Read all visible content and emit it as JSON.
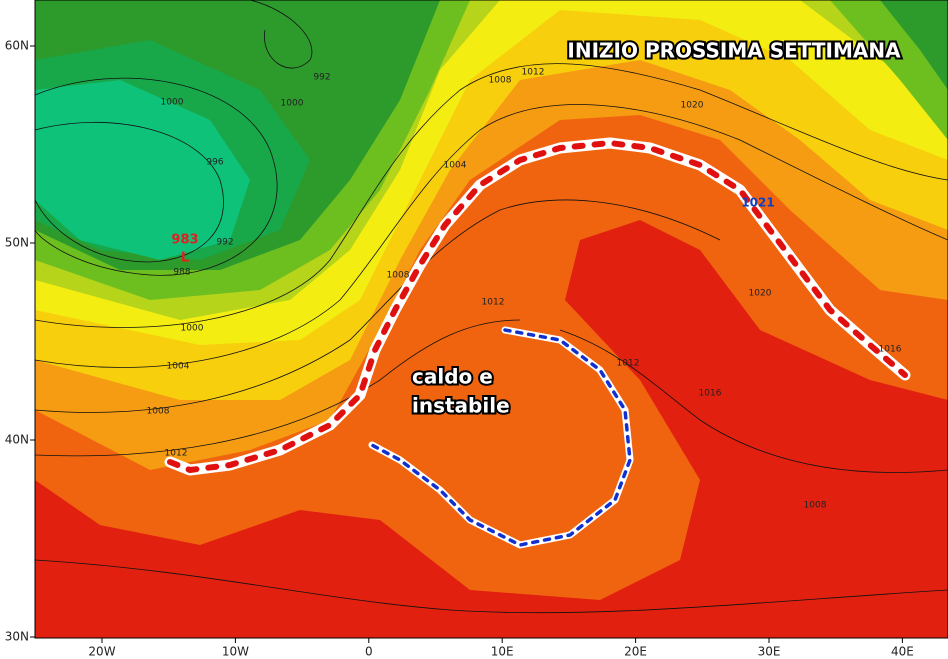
{
  "title": "INIZIO PROSSIMA SETTIMANA",
  "annotation": {
    "lines": [
      "caldo e",
      "instabile"
    ]
  },
  "lat_labels": [
    "60N",
    "50N",
    "40N",
    "30N"
  ],
  "lon_labels": [
    "20W",
    "10W",
    "0",
    "10E",
    "20E",
    "30E",
    "40E"
  ],
  "low": {
    "pressure": "983",
    "symbol": "L"
  },
  "high_marker": "1021",
  "isobar_labels": [
    "1000",
    "996",
    "992",
    "988",
    "1000",
    "1004",
    "1008",
    "1012",
    "992",
    "1000",
    "1004",
    "1008",
    "1012",
    "1020",
    "1008",
    "1012",
    "1012",
    "1016",
    "1020",
    "1016",
    "1008"
  ]
}
